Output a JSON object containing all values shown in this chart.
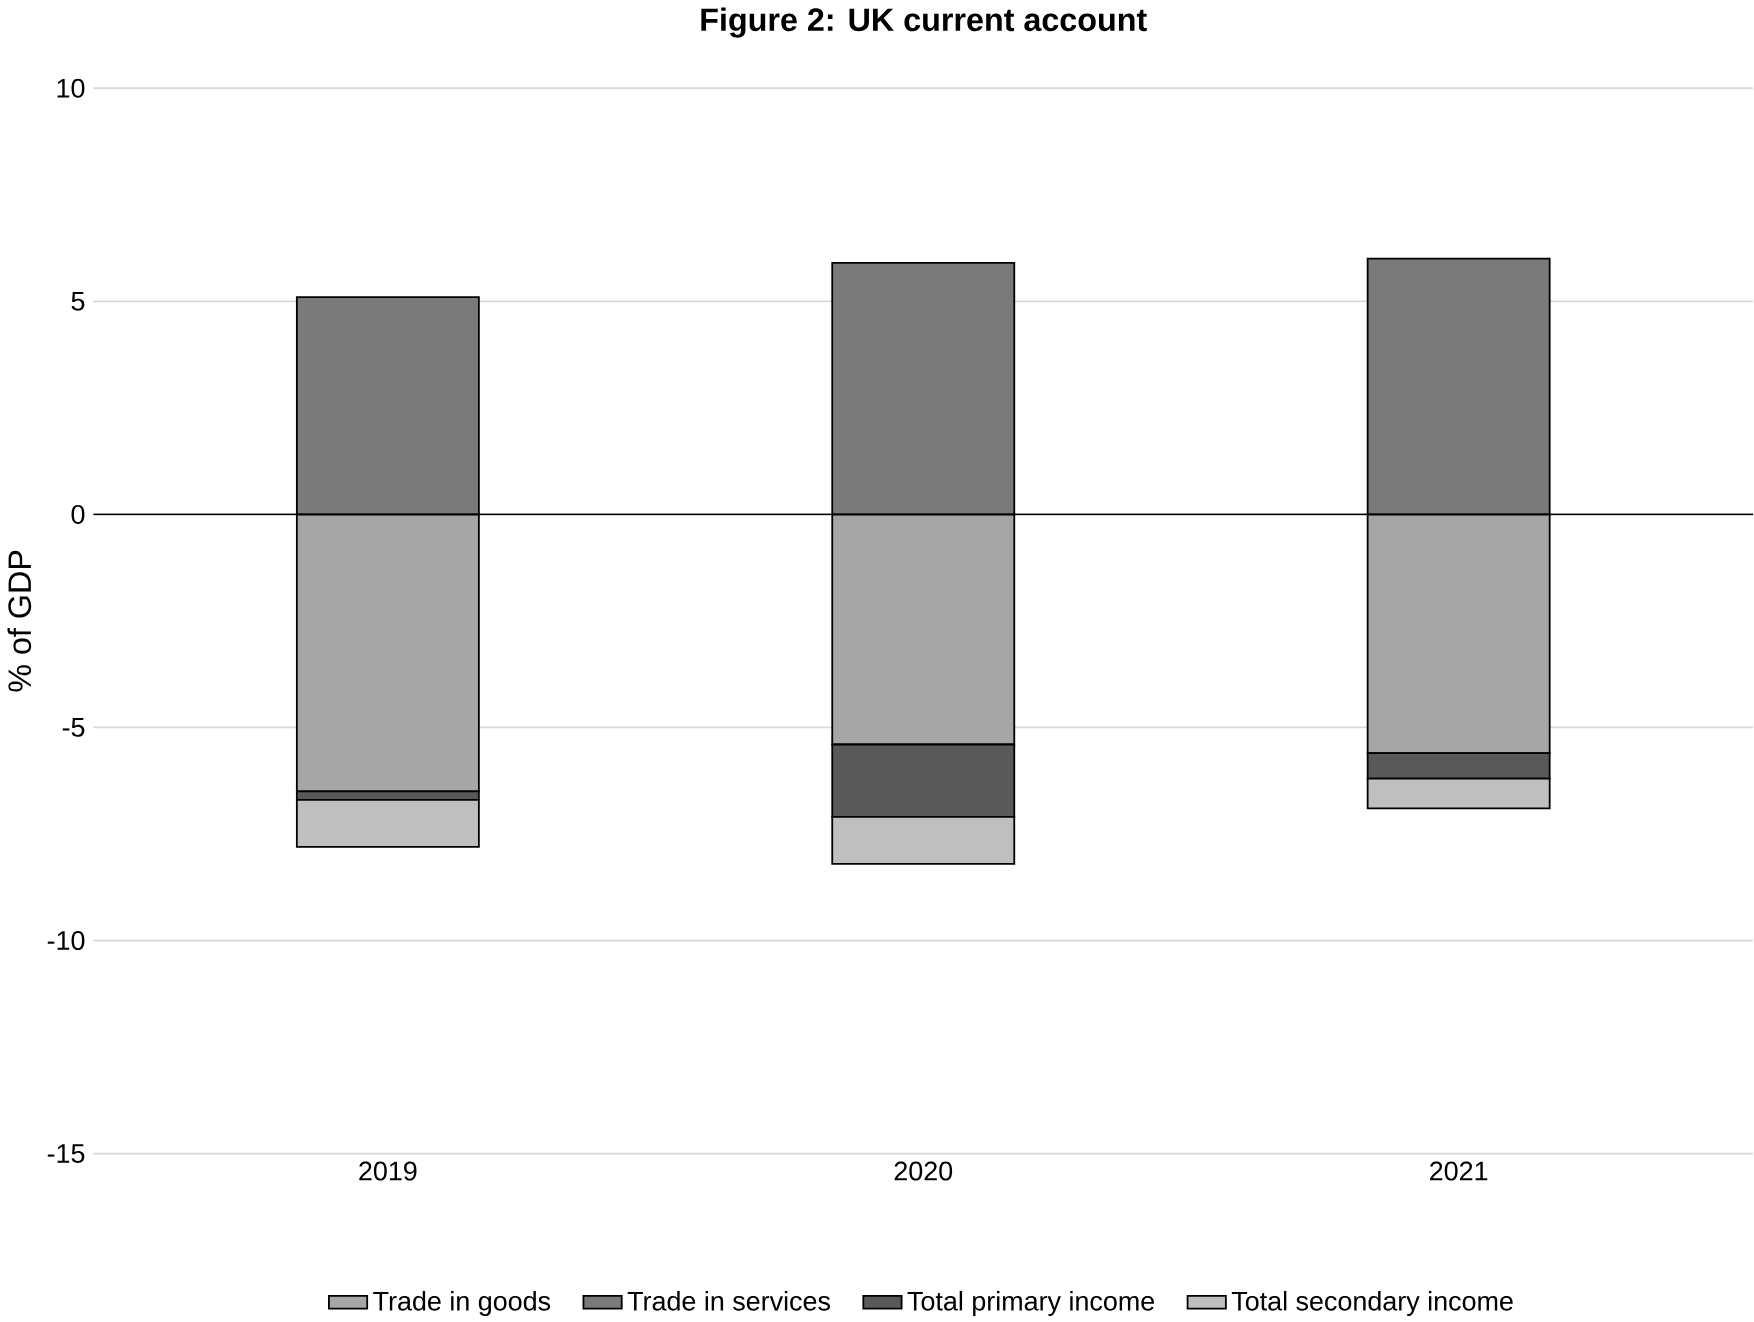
{
  "chart_data": {
    "type": "bar",
    "stacked": true,
    "title": "Figure 2: UK current account",
    "ylabel": "% of GDP",
    "categories": [
      "2019",
      "2020",
      "2021"
    ],
    "series": [
      {
        "name": "Trade in goods",
        "color": "#a6a6a6",
        "values": [
          -6.5,
          -5.4,
          -5.6
        ]
      },
      {
        "name": "Trade in services",
        "color": "#7a7a7a",
        "values": [
          5.1,
          5.9,
          6.0
        ]
      },
      {
        "name": "Total primary income",
        "color": "#595959",
        "values": [
          -0.2,
          -1.7,
          -0.6
        ]
      },
      {
        "name": "Total secondary income",
        "color": "#bfbfbf",
        "values": [
          -1.1,
          -1.1,
          -0.7
        ]
      }
    ],
    "ylim": [
      -15,
      10
    ],
    "yticks": [
      -15,
      -10,
      -5,
      0,
      5,
      10
    ],
    "grid": "y",
    "legend": "bottom"
  }
}
